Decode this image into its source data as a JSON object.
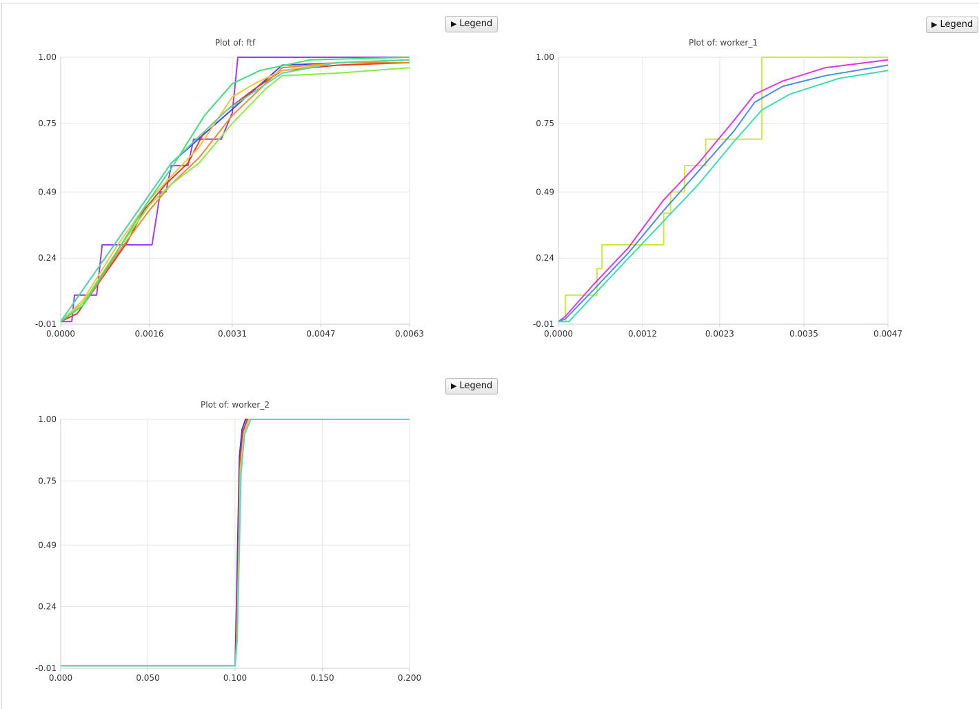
{
  "legend_button": {
    "icon": "play-triangle-icon",
    "label_pre": "Le",
    "mnemonic": "g",
    "label_post": "end"
  },
  "chart_data": [
    {
      "type": "line",
      "title": "Plot of: ftf",
      "xlabel": "",
      "ylabel": "",
      "xlim": [
        0,
        0.0063
      ],
      "ylim": [
        -0.01,
        1.0
      ],
      "x_ticks": [
        "0.0000",
        "0.0016",
        "0.0031",
        "0.0047",
        "0.0063"
      ],
      "y_ticks": [
        "1.00",
        "0.75",
        "0.49",
        "0.24",
        "-0.01"
      ],
      "x_tick_values": [
        0,
        0.0016,
        0.0031,
        0.0047,
        0.0063
      ],
      "y_tick_values": [
        1.0,
        0.75,
        0.49,
        0.24,
        -0.01
      ],
      "grid": true,
      "series": [
        {
          "color": "#9b3df0",
          "x": [
            0,
            0.0002,
            0.00025,
            0.00065,
            0.00075,
            0.00165,
            0.0018,
            0.0019,
            0.002,
            0.0023,
            0.0024,
            0.0029,
            0.0031,
            0.0032,
            0.0063
          ],
          "y": [
            0,
            0,
            0.1,
            0.1,
            0.29,
            0.29,
            0.49,
            0.49,
            0.59,
            0.59,
            0.69,
            0.69,
            0.79,
            1.0,
            1.0
          ]
        },
        {
          "color": "#4a3ff0",
          "x": [
            0,
            0.002,
            0.004,
            0.0063
          ],
          "y": [
            0,
            0.6,
            0.97,
            0.99
          ]
        },
        {
          "color": "#e8382c",
          "x": [
            0,
            0.0003,
            0.0006,
            0.0012,
            0.0015,
            0.0019,
            0.0023,
            0.0026,
            0.003,
            0.0035,
            0.004,
            0.005,
            0.0063
          ],
          "y": [
            0,
            0.03,
            0.12,
            0.3,
            0.42,
            0.52,
            0.6,
            0.72,
            0.8,
            0.88,
            0.95,
            0.97,
            0.98
          ]
        },
        {
          "color": "#f08a2c",
          "x": [
            0,
            0.0004,
            0.001,
            0.0016,
            0.002,
            0.0025,
            0.0031,
            0.004,
            0.005,
            0.0063
          ],
          "y": [
            0,
            0.06,
            0.25,
            0.42,
            0.52,
            0.62,
            0.78,
            0.96,
            0.98,
            0.98
          ]
        },
        {
          "color": "#f5c23a",
          "x": [
            0,
            0.0004,
            0.001,
            0.0016,
            0.002,
            0.0025,
            0.0031,
            0.0035,
            0.004,
            0.005,
            0.0063
          ],
          "y": [
            0,
            0.08,
            0.28,
            0.46,
            0.55,
            0.66,
            0.85,
            0.9,
            0.95,
            0.98,
            0.99
          ]
        },
        {
          "color": "#8ee84a",
          "x": [
            0,
            0.0004,
            0.001,
            0.0016,
            0.002,
            0.0025,
            0.0031,
            0.0037,
            0.004,
            0.005,
            0.0063
          ],
          "y": [
            0,
            0.07,
            0.26,
            0.44,
            0.52,
            0.6,
            0.75,
            0.88,
            0.93,
            0.94,
            0.96
          ]
        },
        {
          "color": "#3ee07a",
          "x": [
            0,
            0.0004,
            0.001,
            0.0016,
            0.002,
            0.0026,
            0.0031,
            0.0036,
            0.0045,
            0.0063
          ],
          "y": [
            0,
            0.06,
            0.26,
            0.46,
            0.58,
            0.78,
            0.9,
            0.95,
            0.99,
            1.0
          ]
        },
        {
          "color": "#58d8a8",
          "x": [
            0,
            0.0003,
            0.001,
            0.0016,
            0.002,
            0.0025,
            0.003,
            0.004,
            0.005,
            0.0063
          ],
          "y": [
            0,
            0.09,
            0.3,
            0.48,
            0.6,
            0.7,
            0.8,
            0.94,
            0.98,
            0.99
          ]
        }
      ]
    },
    {
      "type": "line",
      "title": "Plot of: worker_1",
      "xlabel": "",
      "ylabel": "",
      "xlim": [
        0,
        0.0047
      ],
      "ylim": [
        -0.01,
        1.0
      ],
      "x_ticks": [
        "0.0000",
        "0.0012",
        "0.0023",
        "0.0035",
        "0.0047"
      ],
      "y_ticks": [
        "1.00",
        "0.75",
        "0.49",
        "0.24",
        "-0.01"
      ],
      "x_tick_values": [
        0,
        0.0012,
        0.0023,
        0.0035,
        0.0047
      ],
      "y_tick_values": [
        1.0,
        0.75,
        0.49,
        0.24,
        -0.01
      ],
      "grid": true,
      "series": [
        {
          "color": "#cfe83a",
          "x": [
            0,
            0.0001,
            0.0001,
            0.00055,
            0.00055,
            0.00062,
            0.00062,
            0.0015,
            0.0015,
            0.0016,
            0.0016,
            0.0018,
            0.0018,
            0.0021,
            0.0021,
            0.0029,
            0.0029,
            0.0047
          ],
          "y": [
            0,
            0,
            0.1,
            0.1,
            0.2,
            0.2,
            0.29,
            0.29,
            0.41,
            0.41,
            0.49,
            0.49,
            0.59,
            0.59,
            0.69,
            0.69,
            1.0,
            1.0
          ]
        },
        {
          "color": "#e038e8",
          "x": [
            0,
            0.0001,
            0.0005,
            0.001,
            0.0015,
            0.002,
            0.0025,
            0.0028,
            0.0032,
            0.0038,
            0.0047
          ],
          "y": [
            0,
            0.02,
            0.14,
            0.28,
            0.46,
            0.6,
            0.76,
            0.86,
            0.91,
            0.96,
            0.99
          ]
        },
        {
          "color": "#4a8ee8",
          "x": [
            0,
            0.0001,
            0.0005,
            0.001,
            0.0015,
            0.002,
            0.0025,
            0.0028,
            0.0032,
            0.0038,
            0.0047
          ],
          "y": [
            0,
            0.01,
            0.12,
            0.26,
            0.42,
            0.57,
            0.72,
            0.83,
            0.89,
            0.93,
            0.97
          ]
        },
        {
          "color": "#38e0b0",
          "x": [
            0,
            0.00015,
            0.0005,
            0.001,
            0.0015,
            0.002,
            0.0025,
            0.0029,
            0.0033,
            0.004,
            0.0047
          ],
          "y": [
            0,
            0.0,
            0.1,
            0.24,
            0.38,
            0.52,
            0.68,
            0.8,
            0.86,
            0.92,
            0.95
          ]
        }
      ]
    },
    {
      "type": "line",
      "title": "Plot of: worker_2",
      "xlabel": "",
      "ylabel": "",
      "xlim": [
        0,
        0.2
      ],
      "ylim": [
        -0.01,
        1.0
      ],
      "x_ticks": [
        "0.000",
        "0.050",
        "0.100",
        "0.150",
        "0.200"
      ],
      "y_ticks": [
        "1.00",
        "0.75",
        "0.49",
        "0.24",
        "-0.01"
      ],
      "x_tick_values": [
        0,
        0.05,
        0.1,
        0.15,
        0.2
      ],
      "y_tick_values": [
        1.0,
        0.75,
        0.49,
        0.24,
        -0.01
      ],
      "grid": true,
      "series": [
        {
          "color": "#3a3fd8",
          "x": [
            0,
            0.1,
            0.1005,
            0.1015,
            0.1025,
            0.104,
            0.106,
            0.2
          ],
          "y": [
            0,
            0,
            0.15,
            0.5,
            0.85,
            0.96,
            1.0,
            1.0
          ]
        },
        {
          "color": "#e8382c",
          "x": [
            0,
            0.1,
            0.1008,
            0.1018,
            0.1028,
            0.1045,
            0.107,
            0.2
          ],
          "y": [
            0,
            0,
            0.12,
            0.45,
            0.82,
            0.95,
            1.0,
            1.0
          ]
        },
        {
          "color": "#f5c23a",
          "x": [
            0,
            0.1,
            0.101,
            0.102,
            0.103,
            0.105,
            0.108,
            0.2
          ],
          "y": [
            0,
            0,
            0.1,
            0.42,
            0.8,
            0.94,
            1.0,
            1.0
          ]
        },
        {
          "color": "#58d8c8",
          "x": [
            0,
            0.1,
            0.1012,
            0.1022,
            0.1034,
            0.1055,
            0.109,
            0.2
          ],
          "y": [
            0,
            0,
            0.1,
            0.4,
            0.78,
            0.94,
            1.0,
            1.0
          ]
        }
      ]
    }
  ]
}
